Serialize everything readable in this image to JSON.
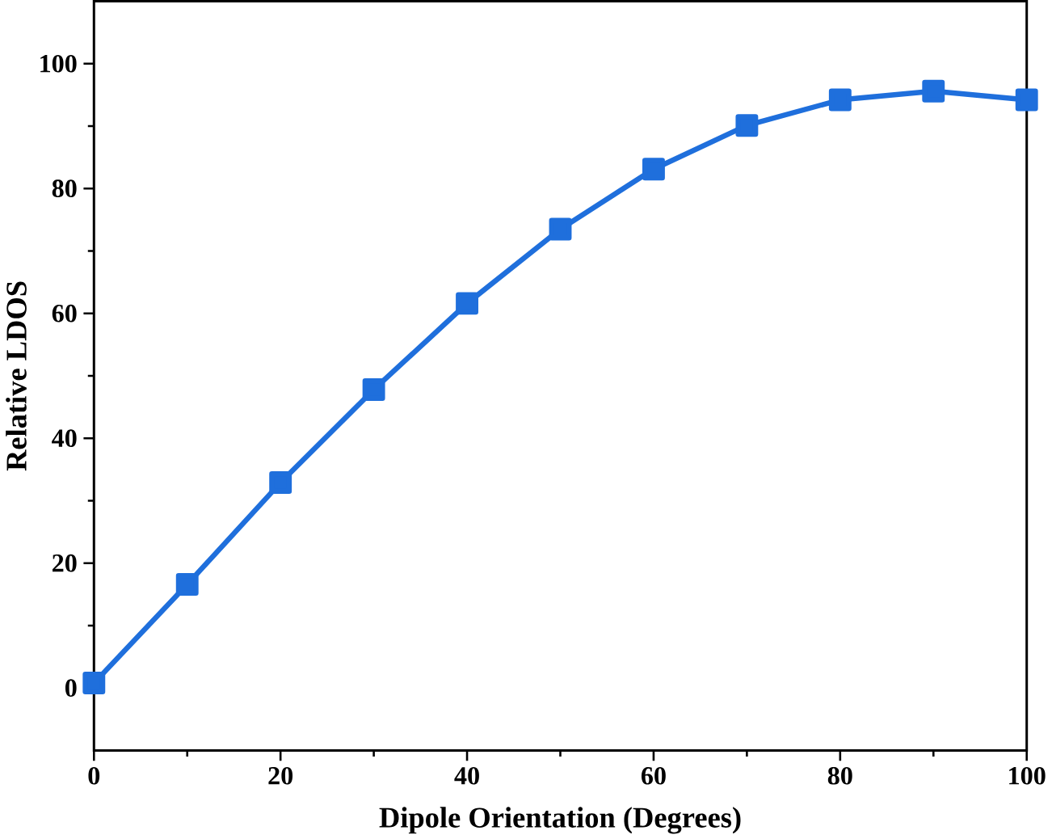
{
  "chart_data": {
    "type": "line",
    "xlabel": "Dipole Orientation (Degrees)",
    "ylabel": "Relative LDOS",
    "x": [
      0,
      10,
      20,
      30,
      40,
      50,
      60,
      70,
      80,
      90,
      100
    ],
    "series": [
      {
        "color": "#1f6fdc",
        "values": [
          0.8,
          16.6,
          32.9,
          47.8,
          61.6,
          73.5,
          83.1,
          90.1,
          94.2,
          95.6,
          94.2
        ]
      }
    ],
    "xlim": [
      0,
      100
    ],
    "ylim": [
      -10,
      110
    ],
    "xticks": [
      0,
      20,
      40,
      60,
      80,
      100
    ],
    "yticks": [
      0,
      20,
      40,
      60,
      80,
      100
    ],
    "marker": "square",
    "line_style": "solid"
  }
}
